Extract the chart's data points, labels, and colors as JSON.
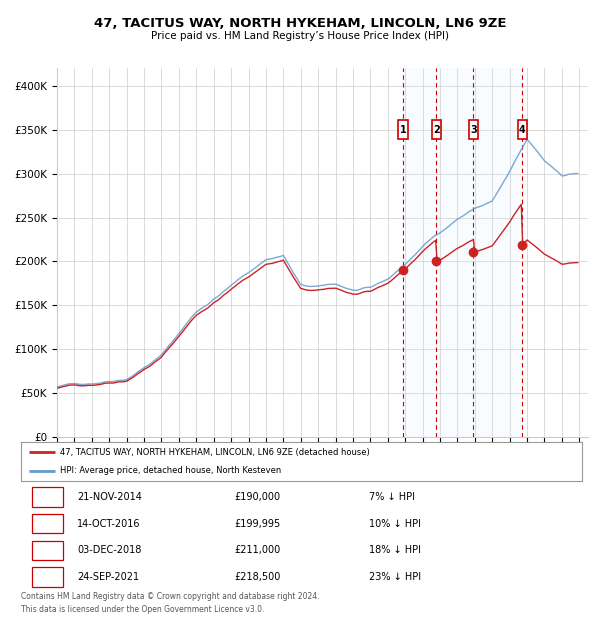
{
  "title": "47, TACITUS WAY, NORTH HYKEHAM, LINCOLN, LN6 9ZE",
  "subtitle": "Price paid vs. HM Land Registry’s House Price Index (HPI)",
  "legend_line1": "47, TACITUS WAY, NORTH HYKEHAM, LINCOLN, LN6 9ZE (detached house)",
  "legend_line2": "HPI: Average price, detached house, North Kesteven",
  "footer1": "Contains HM Land Registry data © Crown copyright and database right 2024.",
  "footer2": "This data is licensed under the Open Government Licence v3.0.",
  "transactions": [
    {
      "label": "1",
      "date": "21-NOV-2014",
      "price": "£190,000",
      "pct": "7% ↓ HPI",
      "year": 2014.89
    },
    {
      "label": "2",
      "date": "14-OCT-2016",
      "price": "£199,995",
      "pct": "10% ↓ HPI",
      "year": 2016.79
    },
    {
      "label": "3",
      "date": "03-DEC-2018",
      "price": "£211,000",
      "pct": "18% ↓ HPI",
      "year": 2018.92
    },
    {
      "label": "4",
      "date": "24-SEP-2021",
      "price": "£218,500",
      "pct": "23% ↓ HPI",
      "year": 2021.73
    }
  ],
  "background_color": "#ffffff",
  "grid_color": "#cccccc",
  "hpi_line_color": "#6699cc",
  "price_line_color": "#cc2222",
  "vline_color": "#cc0000",
  "shade_color": "#ddeeff",
  "ylim": [
    0,
    420000
  ],
  "xlim_start": 1995.0,
  "xlim_end": 2025.5,
  "yticks": [
    0,
    50000,
    100000,
    150000,
    200000,
    250000,
    300000,
    350000,
    400000
  ],
  "ytick_labels": [
    "£0",
    "£50K",
    "£100K",
    "£150K",
    "£200K",
    "£250K",
    "£300K",
    "£350K",
    "£400K"
  ]
}
